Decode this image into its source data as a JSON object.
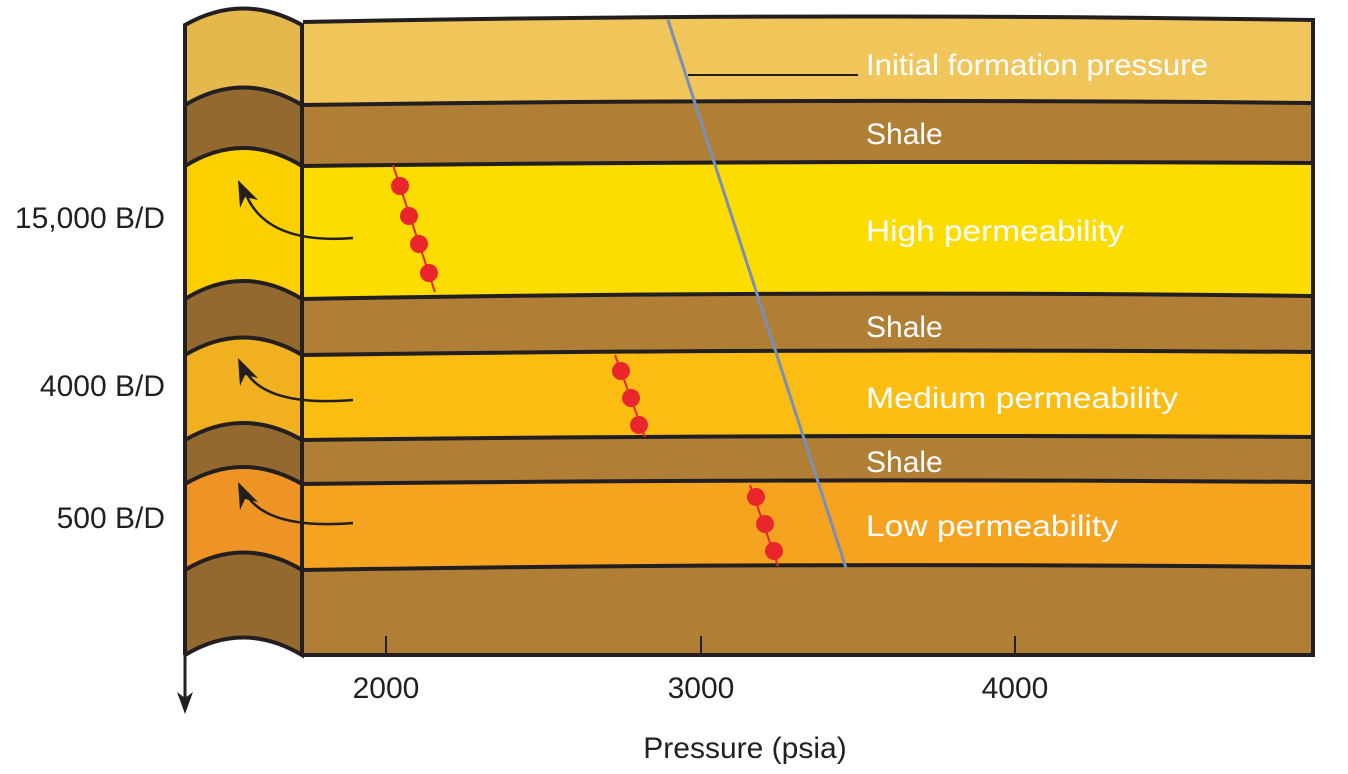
{
  "layers": {
    "initial": {
      "label": "Initial formation pressure",
      "color": "#f0c55a",
      "well_color": "#e4b84c"
    },
    "shale1": {
      "label": "Shale",
      "color": "#b07f35",
      "well_color": "#94692f"
    },
    "high": {
      "label": "High permeability",
      "color": "#fddc00",
      "well_color": "#fcd000",
      "rate": "15,000 B/D"
    },
    "shale2": {
      "label": "Shale",
      "color": "#b07f35",
      "well_color": "#94692f"
    },
    "medium": {
      "label": "Medium permeability",
      "color": "#fbbd12",
      "well_color": "#f1b020",
      "rate": "4000 B/D"
    },
    "shale3": {
      "label": "Shale",
      "color": "#b07f35",
      "well_color": "#94692f"
    },
    "low": {
      "label": "Low permeability",
      "color": "#f6a320",
      "well_color": "#ee9424",
      "rate": "500 B/D"
    },
    "bottom": {
      "color": "#b07f35",
      "well_color": "#94692f"
    }
  },
  "axis": {
    "title": "Pressure (psia)",
    "ticks": [
      "2000",
      "3000",
      "4000"
    ]
  },
  "colors": {
    "pressure_line": "#7a8fb8",
    "points": "#e8262b"
  }
}
